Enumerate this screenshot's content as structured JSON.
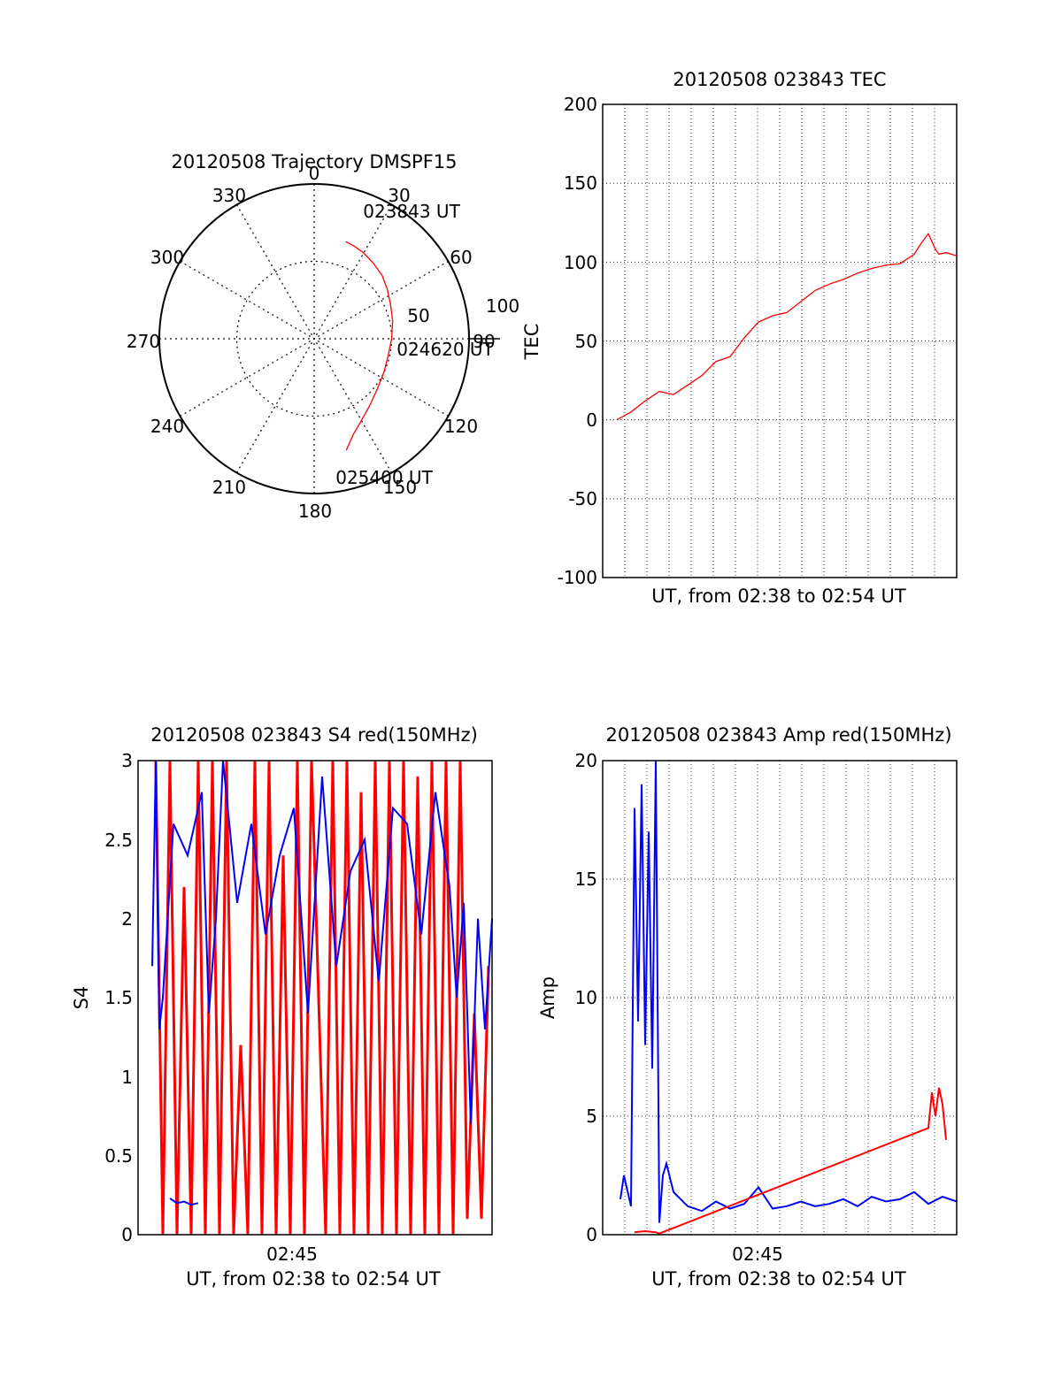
{
  "colors": {
    "red": "#ff0000",
    "blue": "#0000ff",
    "axis": "#000000",
    "grid": "#000000"
  },
  "chart_data": [
    {
      "id": "trajectory",
      "type": "polar",
      "title": "20120508 Trajectory DMSPF15",
      "azimuth_labels": [
        "0",
        "30",
        "60",
        "90",
        "120",
        "150",
        "180",
        "210",
        "240",
        "270",
        "300",
        "330"
      ],
      "radial_labels": [
        "50",
        "100"
      ],
      "radial_max": 100,
      "grid": true,
      "time_labels": [
        "023843 UT",
        "024620 UT",
        "025400 UT"
      ],
      "track": [
        {
          "az": 18,
          "r": 66
        },
        {
          "az": 24,
          "r": 65
        },
        {
          "az": 30,
          "r": 64
        },
        {
          "az": 38,
          "r": 62
        },
        {
          "az": 47,
          "r": 60
        },
        {
          "az": 56,
          "r": 57
        },
        {
          "az": 66,
          "r": 54
        },
        {
          "az": 77,
          "r": 52
        },
        {
          "az": 90,
          "r": 50
        },
        {
          "az": 103,
          "r": 49
        },
        {
          "az": 116,
          "r": 50
        },
        {
          "az": 128,
          "r": 52
        },
        {
          "az": 140,
          "r": 56
        },
        {
          "az": 150,
          "r": 61
        },
        {
          "az": 158,
          "r": 67
        },
        {
          "az": 164,
          "r": 75
        }
      ]
    },
    {
      "id": "tec",
      "type": "line",
      "title": "20120508 023843 TEC",
      "xlabel": "UT, from 02:38 to 02:54 UT",
      "ylabel": "TEC",
      "ylim": [
        -100,
        200
      ],
      "yticks": [
        "200",
        "150",
        "100",
        "50",
        "0",
        "-50",
        "-100"
      ],
      "grid": true,
      "series": [
        {
          "color": "red",
          "x": [
            0.04,
            0.08,
            0.12,
            0.16,
            0.2,
            0.24,
            0.28,
            0.32,
            0.36,
            0.4,
            0.44,
            0.48,
            0.52,
            0.56,
            0.6,
            0.64,
            0.68,
            0.72,
            0.76,
            0.8,
            0.84,
            0.88,
            0.9,
            0.92,
            0.94,
            0.95,
            0.97,
            1.0
          ],
          "y": [
            0,
            5,
            12,
            18,
            16,
            22,
            28,
            37,
            40,
            52,
            62,
            66,
            68,
            75,
            82,
            86,
            89,
            93,
            96,
            98,
            99,
            105,
            112,
            118,
            108,
            105,
            106,
            104
          ]
        }
      ]
    },
    {
      "id": "s4",
      "type": "line",
      "title": "20120508 023843 S4 red(150MHz)",
      "xlabel": "UT, from 02:38 to 02:54 UT",
      "ylabel": "S4",
      "ylim": [
        0,
        3
      ],
      "yticks": [
        "3",
        "2.5",
        "2",
        "1.5",
        "1",
        "0.5",
        "0"
      ],
      "xtick_label": "02:45",
      "series": [
        {
          "color": "red",
          "x": [
            0.05,
            0.07,
            0.09,
            0.11,
            0.13,
            0.15,
            0.17,
            0.19,
            0.21,
            0.23,
            0.25,
            0.27,
            0.29,
            0.31,
            0.33,
            0.35,
            0.37,
            0.39,
            0.41,
            0.43,
            0.45,
            0.47,
            0.49,
            0.51,
            0.53,
            0.55,
            0.57,
            0.59,
            0.61,
            0.63,
            0.65,
            0.67,
            0.69,
            0.71,
            0.73,
            0.75,
            0.77,
            0.79,
            0.81,
            0.83,
            0.85,
            0.87,
            0.89,
            0.91,
            0.93,
            0.95,
            0.97,
            0.99
          ],
          "y": [
            3,
            0,
            3,
            0,
            2.2,
            0,
            3,
            0,
            3,
            0,
            3,
            0,
            1.2,
            0,
            3,
            0,
            3,
            0,
            2.4,
            0,
            3,
            0,
            3,
            1.5,
            0,
            3,
            0,
            3,
            0,
            2.8,
            0,
            3,
            0,
            3,
            0,
            3,
            0,
            2.9,
            0,
            3,
            0,
            3,
            0,
            3,
            0.1,
            1.4,
            0.1,
            1.7
          ]
        },
        {
          "color": "blue",
          "x": [
            0.04,
            0.05,
            0.06,
            0.07,
            0.1,
            0.14,
            0.18,
            0.2,
            0.22,
            0.24,
            0.28,
            0.32,
            0.36,
            0.4,
            0.44,
            0.48,
            0.52,
            0.56,
            0.6,
            0.64,
            0.68,
            0.72,
            0.76,
            0.8,
            0.84,
            0.88,
            0.9,
            0.92,
            0.94,
            0.96,
            0.98,
            1.0
          ],
          "y": [
            1.7,
            3,
            1.3,
            1.5,
            2.6,
            2.4,
            2.8,
            1.4,
            2.0,
            3,
            2.1,
            2.6,
            1.9,
            2.4,
            2.7,
            1.4,
            2.9,
            1.7,
            2.3,
            2.5,
            1.6,
            2.7,
            2.6,
            1.9,
            2.8,
            2.2,
            1.5,
            2.1,
            0.7,
            2.0,
            1.3,
            2.0
          ]
        },
        {
          "color": "blue",
          "x": [
            0.09,
            0.11,
            0.13,
            0.15,
            0.17
          ],
          "y": [
            0.23,
            0.2,
            0.21,
            0.19,
            0.2
          ]
        }
      ]
    },
    {
      "id": "amp",
      "type": "line",
      "title": "20120508 023843 Amp red(150MHz)",
      "xlabel": "UT, from 02:38 to 02:54 UT",
      "ylabel": "Amp",
      "ylim": [
        0,
        20
      ],
      "yticks": [
        "20",
        "15",
        "10",
        "5",
        "0"
      ],
      "xtick_label": "02:45",
      "grid": true,
      "series": [
        {
          "color": "blue",
          "x": [
            0.05,
            0.06,
            0.08,
            0.09,
            0.1,
            0.11,
            0.12,
            0.13,
            0.14,
            0.15,
            0.16,
            0.17,
            0.18,
            0.2,
            0.24,
            0.28,
            0.32,
            0.36,
            0.4,
            0.44,
            0.48,
            0.52,
            0.56,
            0.6,
            0.64,
            0.68,
            0.72,
            0.76,
            0.8,
            0.84,
            0.88,
            0.92,
            0.96,
            1.0
          ],
          "y": [
            1.5,
            2.5,
            1.2,
            18,
            9,
            19,
            8,
            17,
            7,
            20,
            0.5,
            2.5,
            3.0,
            1.8,
            1.2,
            1.0,
            1.4,
            1.1,
            1.3,
            2.0,
            1.1,
            1.2,
            1.4,
            1.2,
            1.3,
            1.5,
            1.2,
            1.6,
            1.4,
            1.5,
            1.8,
            1.3,
            1.6,
            1.4
          ]
        },
        {
          "color": "red",
          "x": [
            0.09,
            0.12,
            0.15,
            0.16,
            0.92,
            0.93,
            0.94,
            0.95,
            0.96,
            0.97
          ],
          "y": [
            0.1,
            0.15,
            0.1,
            0.05,
            4.5,
            6.0,
            5.0,
            6.2,
            5.5,
            4.0
          ]
        }
      ]
    }
  ]
}
